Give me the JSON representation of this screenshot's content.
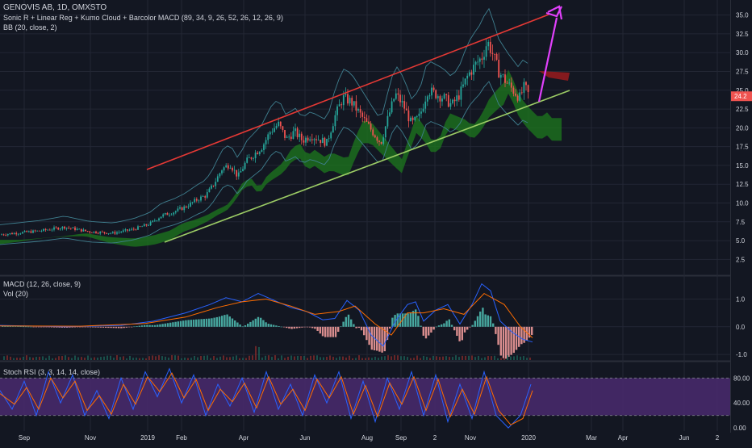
{
  "header": {
    "symbol": "GENOVIS AB, 1D, OMXSTO",
    "indicators_line": "Sonic R + Linear Reg + Kumo Cloud + Barcolor MACD (89, 34, 9, 26, 52, 26, 12, 26, 9)",
    "bb_line": "BB (20, close, 2)"
  },
  "macd_pane": {
    "macd_label": "MACD (12, 26, close, 9)",
    "vol_label": "Vol (20)"
  },
  "rsi_pane": {
    "label": "Stoch RSI (3, 3, 14, 14, close)"
  },
  "colors": {
    "background": "#131722",
    "grid": "#232734",
    "up": "#26a69a",
    "down": "#ef5350",
    "cloud": "#1e7a1e",
    "upper_trend": "#e53935",
    "lower_trend": "#9ccc65",
    "forecast_arrow": "#e040fb",
    "rsi_band": "#4a2a6e",
    "price_badge": "#ef5350"
  },
  "chart_data": [
    {
      "type": "candlestick",
      "pane": "price",
      "x_tick_labels": [
        "Sep",
        "Nov",
        "2019",
        "Feb",
        "Apr",
        "Jun",
        "Aug",
        "Sep",
        "2",
        "Nov",
        "2020",
        "Mar",
        "Apr",
        "Jun",
        "2"
      ],
      "y_ticks": [
        2.5,
        5.0,
        7.5,
        10.0,
        12.5,
        15.0,
        17.5,
        20.0,
        22.5,
        25.0,
        27.5,
        30.0,
        32.5,
        35.0
      ],
      "ylim": [
        0.5,
        37
      ],
      "last_price": "24.2",
      "price_path": [
        [
          0,
          5.8
        ],
        [
          20,
          6.0
        ],
        [
          50,
          6.3
        ],
        [
          80,
          6.8
        ],
        [
          110,
          6.2
        ],
        [
          140,
          6.0
        ],
        [
          165,
          6.5
        ],
        [
          185,
          7.2
        ],
        [
          200,
          8.3
        ],
        [
          215,
          8.8
        ],
        [
          230,
          9.5
        ],
        [
          245,
          10.5
        ],
        [
          255,
          11.0
        ],
        [
          265,
          12.5
        ],
        [
          275,
          14.5
        ],
        [
          285,
          15.2
        ],
        [
          295,
          13.5
        ],
        [
          305,
          15.5
        ],
        [
          315,
          16.5
        ],
        [
          325,
          17.5
        ],
        [
          335,
          19.5
        ],
        [
          345,
          20.5
        ],
        [
          355,
          18.5
        ],
        [
          365,
          19.5
        ],
        [
          375,
          18.3
        ],
        [
          385,
          19.0
        ],
        [
          395,
          18.5
        ],
        [
          405,
          18.0
        ],
        [
          415,
          21.5
        ],
        [
          425,
          24.0
        ],
        [
          435,
          23.5
        ],
        [
          445,
          22.0
        ],
        [
          455,
          20.5
        ],
        [
          465,
          19.0
        ],
        [
          472,
          18.0
        ],
        [
          480,
          21.0
        ],
        [
          490,
          24.5
        ],
        [
          500,
          23.0
        ],
        [
          510,
          20.5
        ],
        [
          520,
          21.5
        ],
        [
          530,
          25.0
        ],
        [
          540,
          24.5
        ],
        [
          550,
          24.0
        ],
        [
          560,
          23.0
        ],
        [
          570,
          24.5
        ],
        [
          580,
          27.0
        ],
        [
          590,
          28.5
        ],
        [
          598,
          29.5
        ],
        [
          604,
          31.5
        ],
        [
          610,
          30.0
        ],
        [
          618,
          27.5
        ],
        [
          628,
          26.0
        ],
        [
          636,
          25.0
        ],
        [
          644,
          24.0
        ],
        [
          650,
          25.5
        ],
        [
          656,
          24.2
        ]
      ],
      "upper_trendline": {
        "from": [
          "Sep 2018",
          14.8
        ],
        "to": [
          "Jan 2020",
          35.5
        ]
      },
      "lower_trendline": {
        "from": [
          "Oct 2018",
          4.8
        ],
        "to": [
          "Jan 2020",
          25.0
        ]
      },
      "forecast_arrow": {
        "from": [
          24.0
        ],
        "to": [
          35.2
        ]
      }
    },
    {
      "type": "histogram+line",
      "pane": "macd",
      "y_ticks": [
        1.0,
        0.0,
        -1.0
      ],
      "ylim": [
        -1.2,
        1.8
      ],
      "macd_path": [
        [
          0,
          0.05
        ],
        [
          80,
          0.0
        ],
        [
          150,
          0.05
        ],
        [
          190,
          0.2
        ],
        [
          230,
          0.5
        ],
        [
          260,
          0.8
        ],
        [
          280,
          1.05
        ],
        [
          300,
          0.9
        ],
        [
          320,
          1.2
        ],
        [
          340,
          0.95
        ],
        [
          360,
          0.7
        ],
        [
          380,
          0.55
        ],
        [
          400,
          0.25
        ],
        [
          415,
          0.3
        ],
        [
          430,
          0.95
        ],
        [
          445,
          0.6
        ],
        [
          460,
          -0.3
        ],
        [
          475,
          -0.7
        ],
        [
          490,
          0.2
        ],
        [
          505,
          0.8
        ],
        [
          515,
          0.9
        ],
        [
          525,
          0.2
        ],
        [
          540,
          0.6
        ],
        [
          555,
          0.8
        ],
        [
          570,
          0.1
        ],
        [
          585,
          0.8
        ],
        [
          597,
          1.55
        ],
        [
          608,
          1.3
        ],
        [
          620,
          0.2
        ],
        [
          635,
          -0.2
        ],
        [
          648,
          -0.45
        ],
        [
          660,
          -0.55
        ]
      ],
      "signal_path": [
        [
          0,
          0.03
        ],
        [
          100,
          0.02
        ],
        [
          180,
          0.12
        ],
        [
          230,
          0.35
        ],
        [
          270,
          0.7
        ],
        [
          300,
          0.9
        ],
        [
          330,
          1.0
        ],
        [
          360,
          0.75
        ],
        [
          390,
          0.45
        ],
        [
          420,
          0.55
        ],
        [
          440,
          0.75
        ],
        [
          465,
          0.1
        ],
        [
          485,
          -0.3
        ],
        [
          505,
          0.5
        ],
        [
          525,
          0.5
        ],
        [
          550,
          0.65
        ],
        [
          575,
          0.45
        ],
        [
          600,
          1.2
        ],
        [
          625,
          0.8
        ],
        [
          645,
          0.0
        ],
        [
          660,
          -0.4
        ]
      ]
    },
    {
      "type": "line",
      "pane": "stoch_rsi",
      "y_ticks": [
        80.0,
        40.0,
        0.0
      ],
      "ylim": [
        -5,
        105
      ],
      "band": [
        20,
        80
      ],
      "k_path": [
        [
          0,
          60
        ],
        [
          15,
          30
        ],
        [
          30,
          75
        ],
        [
          45,
          20
        ],
        [
          60,
          90
        ],
        [
          75,
          40
        ],
        [
          90,
          85
        ],
        [
          105,
          20
        ],
        [
          120,
          60
        ],
        [
          135,
          15
        ],
        [
          150,
          80
        ],
        [
          165,
          30
        ],
        [
          180,
          90
        ],
        [
          195,
          50
        ],
        [
          210,
          95
        ],
        [
          225,
          40
        ],
        [
          240,
          85
        ],
        [
          255,
          20
        ],
        [
          270,
          70
        ],
        [
          285,
          35
        ],
        [
          300,
          80
        ],
        [
          315,
          25
        ],
        [
          330,
          90
        ],
        [
          345,
          30
        ],
        [
          360,
          70
        ],
        [
          375,
          20
        ],
        [
          390,
          85
        ],
        [
          405,
          40
        ],
        [
          420,
          90
        ],
        [
          435,
          15
        ],
        [
          450,
          75
        ],
        [
          465,
          10
        ],
        [
          480,
          80
        ],
        [
          495,
          30
        ],
        [
          510,
          90
        ],
        [
          525,
          20
        ],
        [
          540,
          85
        ],
        [
          555,
          10
        ],
        [
          570,
          70
        ],
        [
          585,
          15
        ],
        [
          600,
          90
        ],
        [
          615,
          20
        ],
        [
          630,
          0
        ],
        [
          645,
          20
        ],
        [
          658,
          70
        ]
      ],
      "d_path": [
        [
          0,
          55
        ],
        [
          18,
          38
        ],
        [
          33,
          65
        ],
        [
          48,
          30
        ],
        [
          63,
          80
        ],
        [
          78,
          48
        ],
        [
          93,
          75
        ],
        [
          108,
          28
        ],
        [
          123,
          52
        ],
        [
          138,
          22
        ],
        [
          153,
          70
        ],
        [
          168,
          38
        ],
        [
          183,
          82
        ],
        [
          198,
          58
        ],
        [
          213,
          88
        ],
        [
          228,
          48
        ],
        [
          243,
          78
        ],
        [
          258,
          28
        ],
        [
          273,
          62
        ],
        [
          288,
          42
        ],
        [
          303,
          72
        ],
        [
          318,
          32
        ],
        [
          333,
          82
        ],
        [
          348,
          38
        ],
        [
          363,
          62
        ],
        [
          378,
          28
        ],
        [
          393,
          78
        ],
        [
          408,
          48
        ],
        [
          423,
          82
        ],
        [
          438,
          22
        ],
        [
          453,
          68
        ],
        [
          468,
          18
        ],
        [
          483,
          72
        ],
        [
          498,
          38
        ],
        [
          513,
          82
        ],
        [
          528,
          28
        ],
        [
          543,
          78
        ],
        [
          558,
          18
        ],
        [
          573,
          62
        ],
        [
          588,
          22
        ],
        [
          603,
          82
        ],
        [
          618,
          28
        ],
        [
          633,
          5
        ],
        [
          648,
          15
        ],
        [
          660,
          60
        ]
      ]
    }
  ]
}
